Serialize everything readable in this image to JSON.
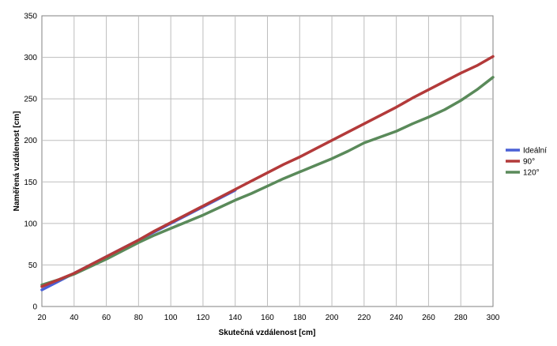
{
  "chart_data": {
    "type": "line",
    "title": "",
    "xlabel": "Skutečná vzdálenost [cm]",
    "ylabel": "Naměřená vzdálenost [cm]",
    "xlim": [
      20,
      300
    ],
    "ylim": [
      0,
      350
    ],
    "xticks": [
      20,
      40,
      60,
      80,
      100,
      120,
      140,
      160,
      180,
      200,
      220,
      240,
      260,
      280,
      300
    ],
    "yticks": [
      0,
      50,
      100,
      150,
      200,
      250,
      300,
      350
    ],
    "grid": true,
    "legend_position": "right",
    "series": [
      {
        "name": "Ideální",
        "color": "#4a60d6",
        "x": [
          20,
          40,
          60,
          80,
          100,
          120,
          140
        ],
        "y": [
          20,
          40,
          60,
          80,
          100,
          120,
          140
        ]
      },
      {
        "name": "90°",
        "color": "#b33a3a",
        "x": [
          20,
          30,
          40,
          50,
          60,
          70,
          80,
          90,
          100,
          110,
          120,
          130,
          140,
          150,
          160,
          170,
          180,
          190,
          200,
          210,
          220,
          230,
          240,
          250,
          260,
          270,
          280,
          290,
          300
        ],
        "y": [
          24,
          32,
          40,
          50,
          60,
          70,
          80,
          91,
          101,
          111,
          121,
          131,
          141,
          151,
          161,
          171,
          180,
          190,
          200,
          210,
          220,
          230,
          240,
          251,
          261,
          271,
          281,
          290,
          301
        ]
      },
      {
        "name": "120°",
        "color": "#5a8a5a",
        "x": [
          20,
          30,
          40,
          50,
          60,
          70,
          80,
          90,
          100,
          110,
          120,
          130,
          140,
          150,
          160,
          170,
          180,
          190,
          200,
          210,
          220,
          230,
          240,
          250,
          260,
          270,
          280,
          290,
          300
        ],
        "y": [
          26,
          32,
          39,
          48,
          57,
          67,
          77,
          86,
          94,
          102,
          110,
          119,
          128,
          136,
          145,
          154,
          162,
          170,
          178,
          187,
          197,
          204,
          211,
          220,
          228,
          237,
          248,
          261,
          276
        ]
      }
    ]
  }
}
